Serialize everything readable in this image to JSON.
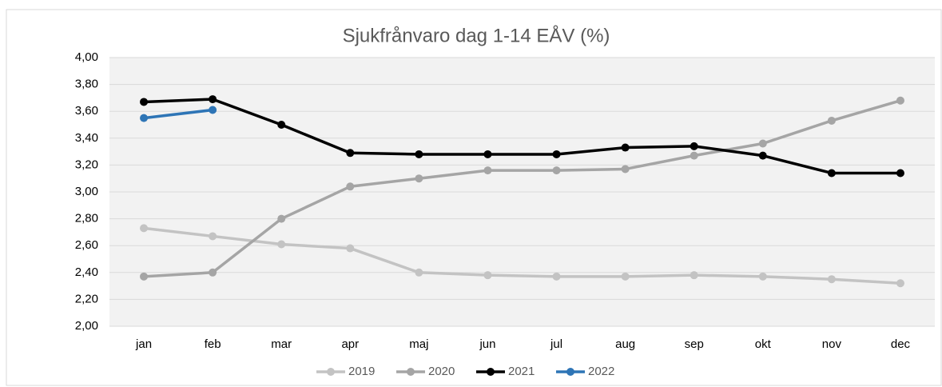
{
  "chart_data": {
    "type": "line",
    "title": "Sjukfrånvaro dag 1-14 EÅV (%)",
    "categories": [
      "jan",
      "feb",
      "mar",
      "apr",
      "maj",
      "jun",
      "jul",
      "aug",
      "sep",
      "okt",
      "nov",
      "dec"
    ],
    "series": [
      {
        "name": "2019",
        "color": "#c3c3c3",
        "values": [
          2.73,
          2.67,
          2.61,
          2.58,
          2.4,
          2.38,
          2.37,
          2.37,
          2.38,
          2.37,
          2.35,
          2.32
        ]
      },
      {
        "name": "2020",
        "color": "#a5a5a5",
        "values": [
          2.37,
          2.4,
          2.8,
          3.04,
          3.1,
          3.16,
          3.16,
          3.17,
          3.27,
          3.36,
          3.53,
          3.68
        ]
      },
      {
        "name": "2021",
        "color": "#000000",
        "values": [
          3.67,
          3.69,
          3.5,
          3.29,
          3.28,
          3.28,
          3.28,
          3.33,
          3.34,
          3.27,
          3.14,
          3.14
        ]
      },
      {
        "name": "2022",
        "color": "#2e75b6",
        "values": [
          3.55,
          3.61,
          null,
          null,
          null,
          null,
          null,
          null,
          null,
          null,
          null,
          null
        ]
      }
    ],
    "ylim": [
      2,
      4
    ],
    "yticks": [
      {
        "value": 2,
        "label": "2,00"
      },
      {
        "value": 2.2,
        "label": "2,20"
      },
      {
        "value": 2.4,
        "label": "2,40"
      },
      {
        "value": 2.6,
        "label": "2,60"
      },
      {
        "value": 2.8,
        "label": "2,80"
      },
      {
        "value": 3,
        "label": "3,00"
      },
      {
        "value": 3.2,
        "label": "3,20"
      },
      {
        "value": 3.4,
        "label": "3,40"
      },
      {
        "value": 3.6,
        "label": "3,60"
      },
      {
        "value": 3.8,
        "label": "3,80"
      },
      {
        "value": 4,
        "label": "4,00"
      }
    ],
    "grid": true,
    "legend": "bottom"
  }
}
